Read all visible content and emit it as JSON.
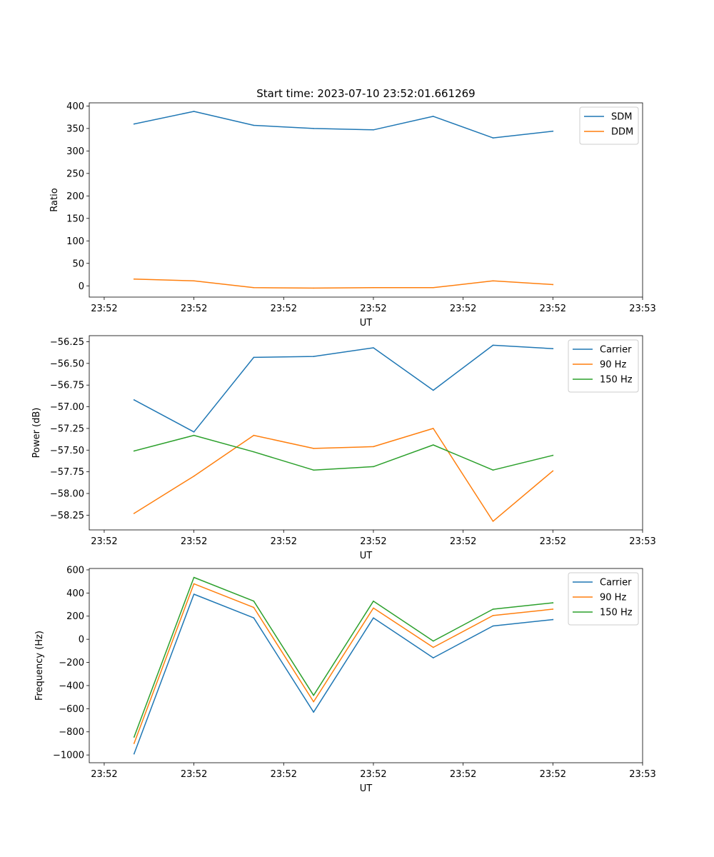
{
  "figure": {
    "title": "Start time: 2023-07-10 23:52:01.661269"
  },
  "colors": {
    "blue": "#1f77b4",
    "orange": "#ff7f0e",
    "green": "#2ca02c"
  },
  "chart_data": [
    {
      "type": "line",
      "xlabel": "UT",
      "ylabel": "Ratio",
      "x": [
        1,
        2,
        3,
        4,
        5,
        6,
        7,
        8
      ],
      "xlim": [
        0.25,
        9.5
      ],
      "xticks": [
        0.5,
        2,
        3.5,
        5,
        6.5,
        8,
        9.5
      ],
      "xtick_labels": [
        "23:52",
        "23:52",
        "23:52",
        "23:52",
        "23:52",
        "23:52",
        "23:53"
      ],
      "ylim": [
        -25,
        407
      ],
      "yticks": [
        0,
        50,
        100,
        150,
        200,
        250,
        300,
        350,
        400
      ],
      "ytick_labels": [
        "0",
        "50",
        "100",
        "150",
        "200",
        "250",
        "300",
        "350",
        "400"
      ],
      "legend_position": "top-right",
      "series": [
        {
          "name": "SDM",
          "color": "#1f77b4",
          "values": [
            360,
            388,
            357,
            350,
            347,
            377,
            329,
            344
          ]
        },
        {
          "name": "DDM",
          "color": "#ff7f0e",
          "values": [
            15,
            11,
            -4,
            -5,
            -4,
            -4,
            11,
            3
          ]
        }
      ]
    },
    {
      "type": "line",
      "xlabel": "UT",
      "ylabel": "Power (dB)",
      "x": [
        1,
        2,
        3,
        4,
        5,
        6,
        7,
        8
      ],
      "xlim": [
        0.25,
        9.5
      ],
      "xticks": [
        0.5,
        2,
        3.5,
        5,
        6.5,
        8,
        9.5
      ],
      "xtick_labels": [
        "23:52",
        "23:52",
        "23:52",
        "23:52",
        "23:52",
        "23:52",
        "23:53"
      ],
      "ylim": [
        -58.42,
        -56.18
      ],
      "yticks": [
        -58.25,
        -58.0,
        -57.75,
        -57.5,
        -57.25,
        -57.0,
        -56.75,
        -56.5,
        -56.25
      ],
      "ytick_labels": [
        "−58.25",
        "−58.00",
        "−57.75",
        "−57.50",
        "−57.25",
        "−57.00",
        "−56.75",
        "−56.50",
        "−56.25"
      ],
      "legend_position": "top-right",
      "series": [
        {
          "name": "Carrier",
          "color": "#1f77b4",
          "values": [
            -56.92,
            -57.29,
            -56.43,
            -56.42,
            -56.32,
            -56.81,
            -56.29,
            -56.33
          ]
        },
        {
          "name": "90 Hz",
          "color": "#ff7f0e",
          "values": [
            -58.23,
            -57.8,
            -57.33,
            -57.48,
            -57.46,
            -57.25,
            -58.32,
            -57.74
          ]
        },
        {
          "name": "150 Hz",
          "color": "#2ca02c",
          "values": [
            -57.51,
            -57.33,
            -57.52,
            -57.73,
            -57.69,
            -57.44,
            -57.73,
            -57.56
          ]
        }
      ]
    },
    {
      "type": "line",
      "xlabel": "UT",
      "ylabel": "Frequency (Hz)",
      "x": [
        1,
        2,
        3,
        4,
        5,
        6,
        7,
        8
      ],
      "xlim": [
        0.25,
        9.5
      ],
      "xticks": [
        0.5,
        2,
        3.5,
        5,
        6.5,
        8,
        9.5
      ],
      "xtick_labels": [
        "23:52",
        "23:52",
        "23:52",
        "23:52",
        "23:52",
        "23:52",
        "23:53"
      ],
      "ylim": [
        -1067,
        612
      ],
      "yticks": [
        -1000,
        -800,
        -600,
        -400,
        -200,
        0,
        200,
        400,
        600
      ],
      "ytick_labels": [
        "−1000",
        "−800",
        "−600",
        "−400",
        "−200",
        "0",
        "200",
        "400",
        "600"
      ],
      "legend_position": "top-right",
      "series": [
        {
          "name": "Carrier",
          "color": "#1f77b4",
          "values": [
            -990,
            390,
            185,
            -630,
            185,
            -160,
            115,
            170
          ]
        },
        {
          "name": "90 Hz",
          "color": "#ff7f0e",
          "values": [
            -900,
            480,
            275,
            -540,
            270,
            -70,
            205,
            260
          ]
        },
        {
          "name": "150 Hz",
          "color": "#2ca02c",
          "values": [
            -845,
            535,
            330,
            -485,
            330,
            -15,
            260,
            315
          ]
        }
      ]
    }
  ]
}
